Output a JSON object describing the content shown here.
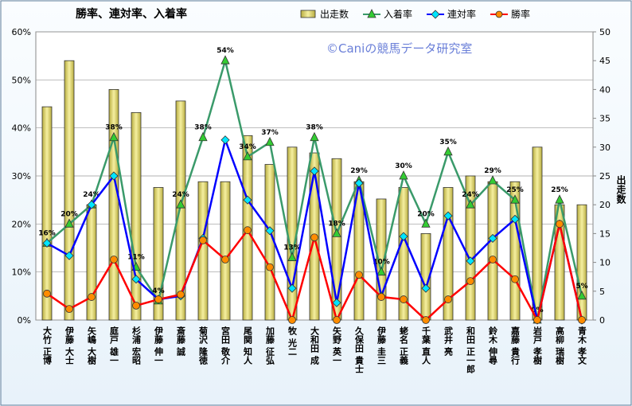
{
  "chart_data": {
    "type": "combo",
    "title": "勝率、連対率、入着率",
    "watermark": "©Caniの競馬データ研究室",
    "y2_label": "出走数",
    "categories": [
      "大竹 正博",
      "伊藤 大士",
      "矢嶋 大樹",
      "庭戸 雄一",
      "杉浦 宏昭",
      "伊藤 伸一",
      "斎藤 誠",
      "菊沢 隆徳",
      "宮田 敬介",
      "尾関 知人",
      "加藤 征弘",
      "牧 光二",
      "大和田 成",
      "矢野 英一",
      "久保田 貴士",
      "伊藤 圭三",
      "蛯名 正義",
      "千葉 直人",
      "武井 亮",
      "和田 正一郎",
      "鈴木 伸尋",
      "嘉藤 貴行",
      "岩戸 孝樹",
      "高柳 瑞樹",
      "青木 孝文"
    ],
    "ylim": [
      0,
      60
    ],
    "yticks": [
      {
        "value": 0,
        "label": "0%"
      },
      {
        "value": 10,
        "label": "10%"
      },
      {
        "value": 20,
        "label": "20%"
      },
      {
        "value": 30,
        "label": "30%"
      },
      {
        "value": 40,
        "label": "40%"
      },
      {
        "value": 50,
        "label": "50%"
      },
      {
        "value": 60,
        "label": "60%"
      }
    ],
    "y2lim": [
      0,
      50
    ],
    "y2ticks": [
      0,
      5,
      10,
      15,
      20,
      25,
      30,
      35,
      40,
      45,
      50
    ],
    "grid": true,
    "series": [
      {
        "name": "出走数",
        "kind": "bar",
        "axis": "y2",
        "color": "#e8e07a",
        "values": [
          37,
          45,
          20,
          40,
          36,
          23,
          38,
          24,
          24,
          32,
          27,
          30,
          29,
          28,
          24,
          21,
          23,
          15,
          23,
          25,
          24,
          24,
          30,
          20,
          20
        ]
      },
      {
        "name": "入着率",
        "kind": "line",
        "marker": "triangle",
        "color": "#3a9a6a",
        "marker_color": "#33cc33",
        "values": [
          16,
          20,
          24,
          38,
          11,
          4,
          24,
          38,
          54,
          34,
          37,
          13,
          38,
          18,
          29,
          10,
          30,
          20,
          35,
          24,
          29,
          25,
          0,
          25,
          5
        ],
        "value_labels": [
          "16%",
          "20%",
          "24%",
          "38%",
          "11%",
          "4%",
          "24%",
          "38%",
          "54%",
          "34%",
          "37%",
          "13%",
          "38%",
          "18%",
          "29%",
          "10%",
          "30%",
          "20%",
          "35%",
          "24%",
          "29%",
          "25%",
          "0%",
          "25%",
          "5%"
        ]
      },
      {
        "name": "連対率",
        "kind": "line",
        "marker": "diamond",
        "color": "#0000ff",
        "marker_color": "#00e5ff",
        "values": [
          16,
          13.4,
          24,
          30,
          8.5,
          4.3,
          5,
          17,
          37.5,
          25,
          18.6,
          6.6,
          31,
          3.6,
          28.5,
          5,
          17.4,
          6.6,
          21.7,
          12.3,
          17,
          21,
          0,
          20,
          0
        ]
      },
      {
        "name": "勝率",
        "kind": "line",
        "marker": "circle",
        "color": "#ff0000",
        "marker_color": "#ff8c00",
        "values": [
          5.5,
          2.3,
          4.8,
          12.6,
          3,
          4.3,
          5.3,
          16.6,
          12.6,
          18.7,
          11,
          0,
          17.2,
          0,
          9.4,
          4.8,
          4.3,
          0,
          4.3,
          8.1,
          12.6,
          8.5,
          0,
          20,
          0
        ]
      }
    ]
  }
}
